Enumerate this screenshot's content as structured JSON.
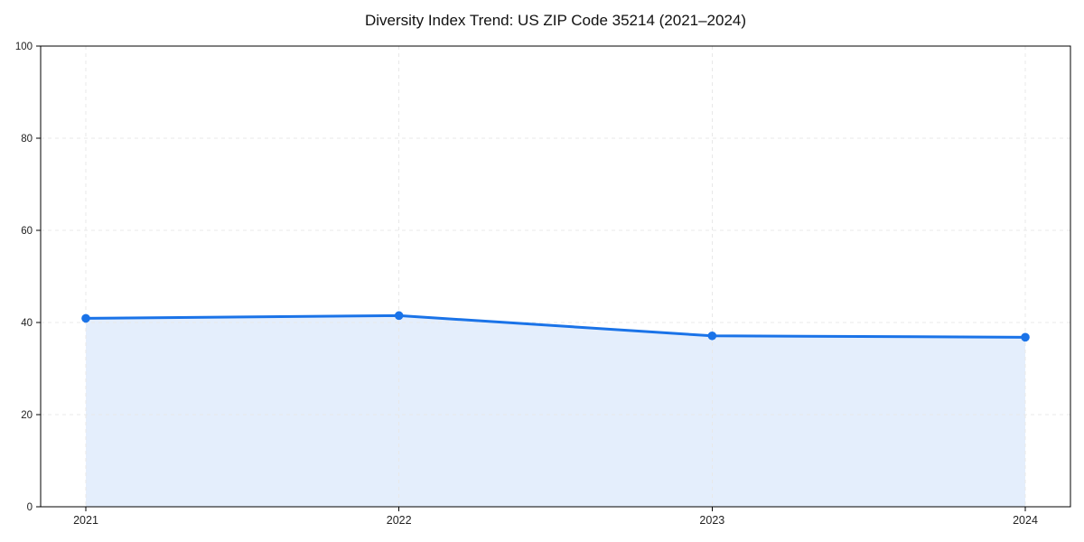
{
  "page": {
    "background": "#ffffff"
  },
  "chart_data": {
    "type": "area",
    "title": "Diversity Index Trend: US ZIP Code 35214 (2021–2024)",
    "categories": [
      "2021",
      "2022",
      "2023",
      "2024"
    ],
    "series": [
      {
        "name": "Diversity Index",
        "values": [
          40.9,
          41.5,
          37.1,
          36.8
        ]
      }
    ],
    "xlabel": "",
    "ylabel": "",
    "ylim": [
      0,
      100
    ],
    "yticks": [
      0,
      20,
      40,
      60,
      80,
      100
    ],
    "grid": "dashed-both-axes",
    "legend": "none",
    "marker": "circle",
    "colors": {
      "line": "#1a73e8",
      "marker": "#1a73e8",
      "fill": "#e4eefc",
      "grid": "#e8e8e8",
      "axis": "#000000",
      "tick_label": "#222222",
      "title": "#111111",
      "background": "#ffffff"
    }
  }
}
